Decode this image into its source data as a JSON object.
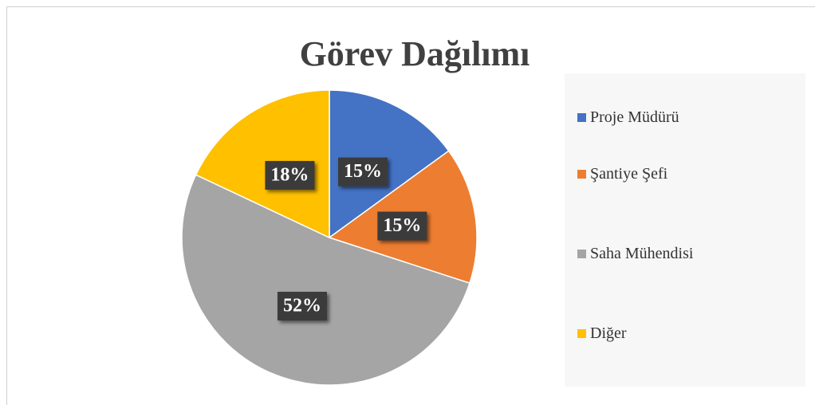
{
  "chart_data": {
    "type": "pie",
    "title": "Görev Dağılımı",
    "categories": [
      "Proje Müdürü",
      "Şantiye Şefi",
      "Saha Mühendisi",
      "Diğer"
    ],
    "values": [
      15,
      15,
      52,
      18
    ],
    "value_labels": [
      "15%",
      "15%",
      "52%",
      "18%"
    ],
    "colors": [
      "#4472c4",
      "#ed7d31",
      "#a5a5a5",
      "#ffc000"
    ],
    "legend": "right"
  }
}
